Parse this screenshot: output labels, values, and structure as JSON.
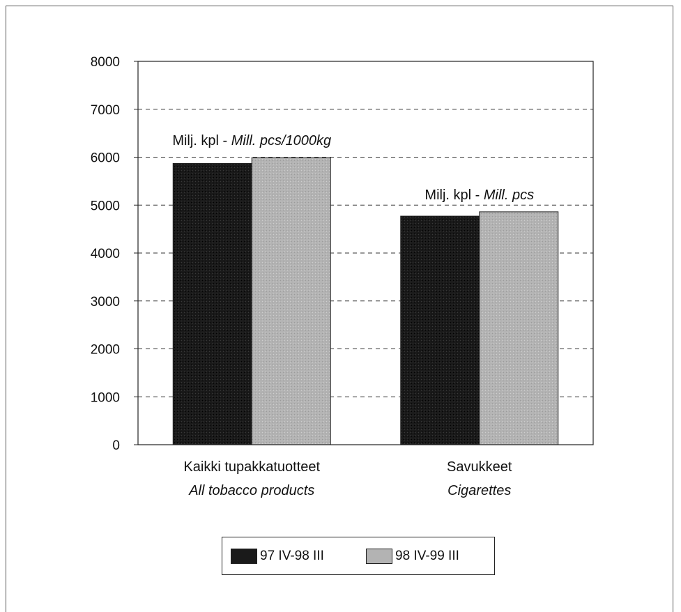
{
  "chart_data": {
    "type": "bar",
    "categories": [
      {
        "line1": "Kaikki tupakkatuotteet",
        "line2": "All tobacco products"
      },
      {
        "line1": "Savukkeet",
        "line2": "Cigarettes"
      }
    ],
    "series": [
      {
        "name": "97 IV-98 III",
        "values": [
          5870,
          4770
        ],
        "color": "#1a1a1a"
      },
      {
        "name": "98 IV-99 III",
        "values": [
          5990,
          4860
        ],
        "color": "#b3b3b3"
      }
    ],
    "ylim": [
      0,
      8000
    ],
    "yticks": [
      "0",
      "1000",
      "2000",
      "3000",
      "4000",
      "5000",
      "6000",
      "7000",
      "8000"
    ],
    "grid": "dashed horizontal",
    "legend_position": "bottom",
    "annotations": [
      {
        "regular": "Milj. kpl - ",
        "italic": "Mill. pcs/1000kg",
        "category": 0
      },
      {
        "regular": "Milj. kpl - ",
        "italic": "Mill. pcs",
        "category": 1
      }
    ]
  }
}
